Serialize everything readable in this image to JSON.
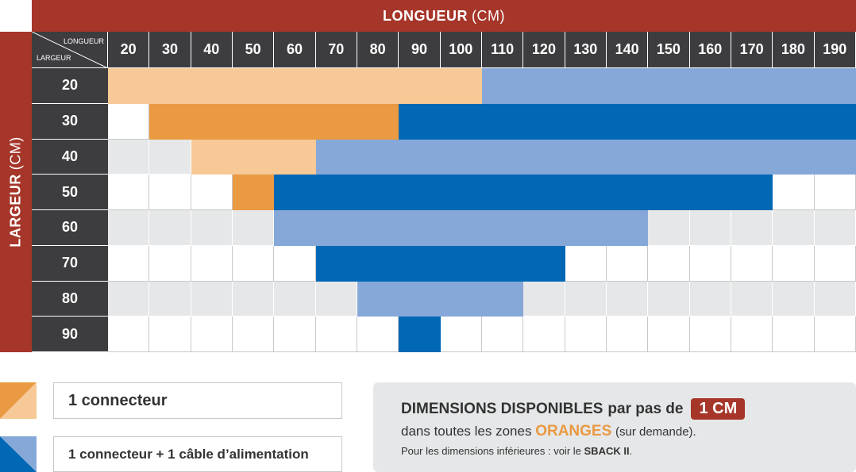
{
  "header": {
    "title_bold": "LONGUEUR",
    "title_unit": "(CM)"
  },
  "side": {
    "title_bold": "LARGEUR",
    "title_unit": "(CM)"
  },
  "corner": {
    "top_label": "LONGUEUR",
    "bottom_label": "LARGEUR"
  },
  "columns": [
    "20",
    "30",
    "40",
    "50",
    "60",
    "70",
    "80",
    "90",
    "100",
    "110",
    "120",
    "130",
    "140",
    "150",
    "160",
    "170",
    "180",
    "190"
  ],
  "rows": [
    {
      "label": "20",
      "cells": [
        "lo",
        "lo",
        "lo",
        "lo",
        "lo",
        "lo",
        "lo",
        "lo",
        "lo",
        "lb",
        "lb",
        "lb",
        "lb",
        "lb",
        "lb",
        "lb",
        "lb",
        "lb"
      ]
    },
    {
      "label": "30",
      "cells": [
        "w",
        "do",
        "do",
        "do",
        "do",
        "do",
        "do",
        "db",
        "db",
        "db",
        "db",
        "db",
        "db",
        "db",
        "db",
        "db",
        "db",
        "db"
      ]
    },
    {
      "label": "40",
      "cells": [
        "g",
        "g",
        "lo",
        "lo",
        "lo",
        "lb",
        "lb",
        "lb",
        "lb",
        "lb",
        "lb",
        "lb",
        "lb",
        "lb",
        "lb",
        "lb",
        "lb",
        "lb"
      ]
    },
    {
      "label": "50",
      "cells": [
        "w",
        "w",
        "w",
        "do",
        "db",
        "db",
        "db",
        "db",
        "db",
        "db",
        "db",
        "db",
        "db",
        "db",
        "db",
        "db",
        "w",
        "w"
      ]
    },
    {
      "label": "60",
      "cells": [
        "g",
        "g",
        "g",
        "g",
        "lb",
        "lb",
        "lb",
        "lb",
        "lb",
        "lb",
        "lb",
        "lb",
        "lb",
        "g",
        "g",
        "g",
        "g",
        "g"
      ]
    },
    {
      "label": "70",
      "cells": [
        "w",
        "w",
        "w",
        "w",
        "w",
        "db",
        "db",
        "db",
        "db",
        "db",
        "db",
        "w",
        "w",
        "w",
        "w",
        "w",
        "w",
        "w"
      ]
    },
    {
      "label": "80",
      "cells": [
        "g",
        "g",
        "g",
        "g",
        "g",
        "g",
        "lb",
        "lb",
        "lb",
        "lb",
        "g",
        "g",
        "g",
        "g",
        "g",
        "g",
        "g",
        "g"
      ]
    },
    {
      "label": "90",
      "cells": [
        "w",
        "w",
        "w",
        "w",
        "w",
        "w",
        "w",
        "db",
        "w",
        "w",
        "w",
        "w",
        "w",
        "w",
        "w",
        "w",
        "w",
        "w"
      ]
    }
  ],
  "colors": {
    "header_red": "#a6362a",
    "dark_grey": "#3d3d3f",
    "light_orange": "#f6c996",
    "dark_orange": "#e99a42",
    "light_blue": "#86a8d8",
    "dark_blue": "#0068b5",
    "light_grey": "#e6e7e8"
  },
  "legend": {
    "item1": "1 connecteur",
    "item2": "1 connecteur + 1 câble d’alimentation"
  },
  "info": {
    "line1_bold": "DIMENSIONS DISPONIBLES",
    "line1_mid": "par pas de",
    "badge": "1 CM",
    "line2_a": "dans toutes les zones",
    "line2_orange": "ORANGES",
    "line2_b": "(sur demande).",
    "line3_a": "Pour les dimensions inférieures : voir le",
    "line3_bold": "SBACK II",
    "line3_end": "."
  }
}
